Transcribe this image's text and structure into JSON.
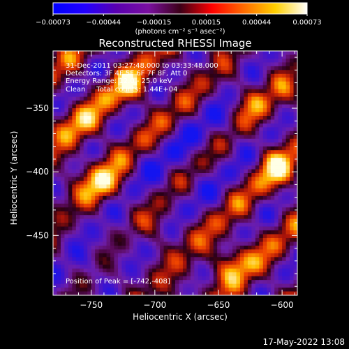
{
  "chart_data": {
    "type": "heatmap",
    "title": "Reconstructed RHESSI Image",
    "xlabel": "Heliocentric X (arcsec)",
    "ylabel": "Heliocentric Y (arcsec)",
    "xlim": [
      -780,
      -588
    ],
    "ylim": [
      -497,
      -305
    ],
    "x_ticks": [
      -750,
      -700,
      -650,
      -600
    ],
    "y_ticks": [
      -450,
      -400,
      -350
    ],
    "x_tick_labels": [
      "−750",
      "−700",
      "−650",
      "−600"
    ],
    "y_tick_labels": [
      "−450",
      "−400",
      "−350"
    ],
    "grid": false,
    "colorbar": {
      "range": [
        -0.00073,
        0.00073
      ],
      "ticks": [
        -0.00073,
        -0.00044,
        -0.00015,
        0.00015,
        0.00044,
        0.00073
      ],
      "tick_labels": [
        "−0.00073",
        "−0.00044",
        "−0.00015",
        "0.00015",
        "0.00044",
        "0.00073"
      ],
      "unit_label": "(photons cm⁻² s⁻¹ asec⁻²)",
      "colormap": [
        "#0000ff",
        "#2200ff",
        "#5a00b0",
        "#7a10a0",
        "#3c0018",
        "#ff0000",
        "#ff6a00",
        "#ffd000",
        "#ffffff"
      ]
    },
    "annotations": {
      "time_range": "31-Dec-2011 03:27:48.000 to 03:33:48.000",
      "detectors": "Detectors: 3F 4F 5F 6F 7F 8F, Att 0",
      "energy": "Energy Range: 12.0 - 25.0 keV",
      "method": "Clean     Total counts: 1.44E+04",
      "peak": "Position of Peak = [-742,-408]"
    },
    "peak": {
      "x": -742,
      "y": -408
    }
  },
  "footer": {
    "timestamp": "17-May-2022 13:08"
  }
}
